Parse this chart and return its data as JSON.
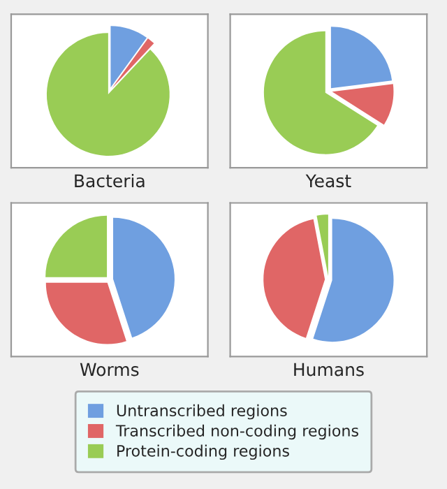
{
  "chart_data": [
    {
      "type": "pie",
      "title": "Bacteria",
      "categories": [
        "Untranscribed regions",
        "Transcribed non-coding regions",
        "Protein-coding regions"
      ],
      "values": [
        10,
        2,
        88
      ],
      "colors": [
        "#6f9fe0",
        "#e06666",
        "#99cc55"
      ],
      "legend": "bottom"
    },
    {
      "type": "pie",
      "title": "Yeast",
      "categories": [
        null,
        null,
        null
      ],
      "values": [
        23,
        11,
        66
      ],
      "colors": [
        "#6f9fe0",
        "#e06666",
        "#99cc55"
      ]
    },
    {
      "type": "pie",
      "title": "Worms",
      "categories": [
        null,
        null,
        null
      ],
      "values": [
        45,
        30,
        25
      ],
      "colors": [
        "#6f9fe0",
        "#e06666",
        "#99cc55"
      ]
    },
    {
      "type": "pie",
      "title": "Humans",
      "categories": [
        null,
        null,
        null
      ],
      "values": [
        55,
        42,
        3
      ],
      "colors": [
        "#6f9fe0",
        "#e06666",
        "#99cc55"
      ]
    }
  ]
}
